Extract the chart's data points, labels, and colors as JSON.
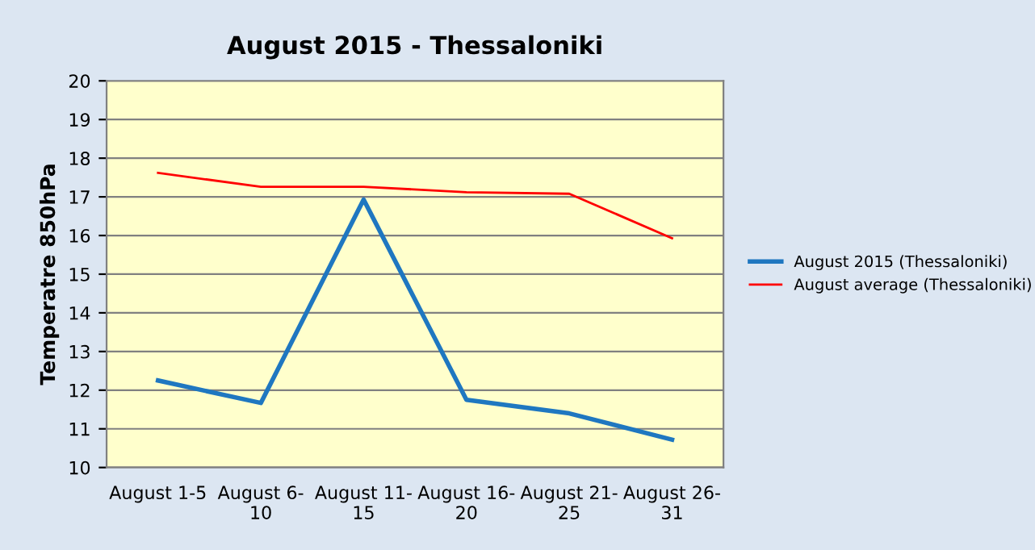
{
  "chart_data": {
    "type": "line",
    "title": "August 2015 - Thessaloniki",
    "ylabel": "Temperatre 850hPa",
    "categories": [
      "August 1-5",
      "August 6-\n10",
      "August 11-\n15",
      "August 16-\n20",
      "August 21-\n25",
      "August 26-\n31"
    ],
    "series": [
      {
        "name": "August 2015 (Thessaloniki)",
        "color": "#1f77c0",
        "values": [
          12.25,
          11.67,
          16.93,
          11.75,
          11.4,
          10.72
        ]
      },
      {
        "name": "August average (Thessaloniki)",
        "color": "#ff0000",
        "values": [
          17.62,
          17.26,
          17.26,
          17.12,
          17.08,
          15.93
        ]
      }
    ],
    "ylim": [
      10,
      20
    ],
    "yticks": [
      10,
      11,
      12,
      13,
      14,
      15,
      16,
      17,
      18,
      19,
      20
    ],
    "grid": "y",
    "legend": "right",
    "marker": "none",
    "line_style": "solid"
  }
}
